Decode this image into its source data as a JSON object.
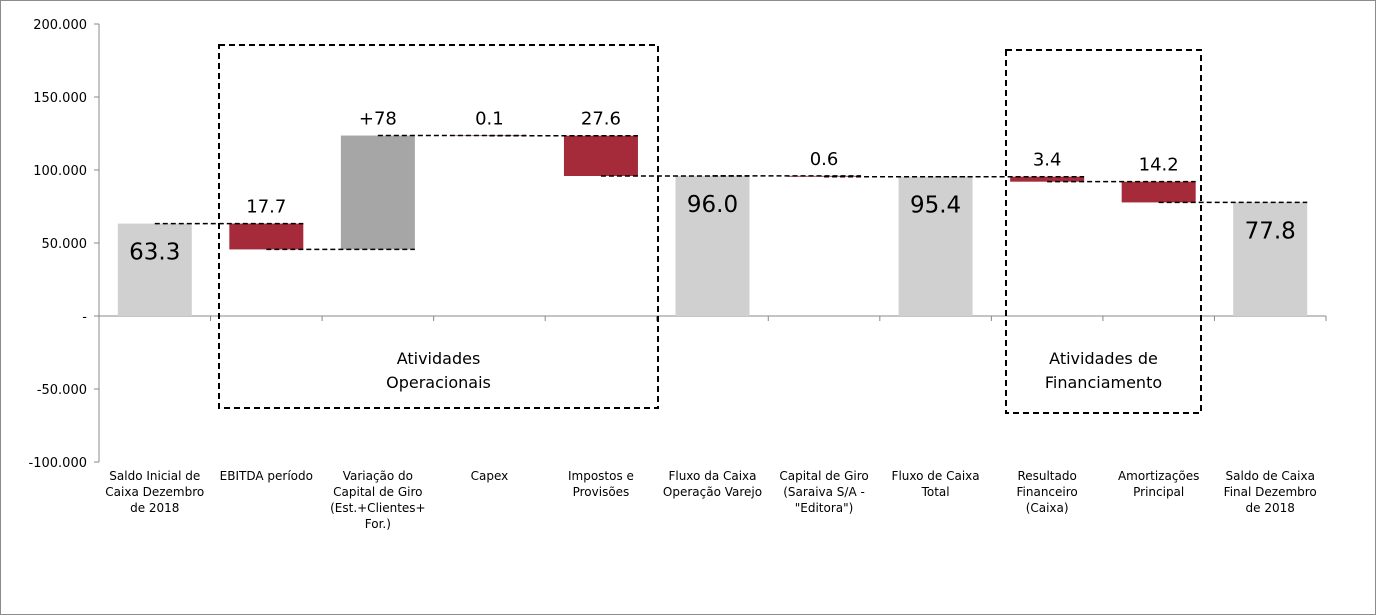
{
  "chart_data": {
    "type": "waterfall",
    "categories": [
      "Saldo Inicial de\nCaixa Dezembro\nde 2018",
      "EBITDA  período",
      "Variação do\nCapital de Giro\n(Est.+Clientes+\nFor.)",
      "Capex",
      "Impostos e\nProvisões",
      "Fluxo da Caixa\nOperação Varejo",
      "Capital de Giro\n(Saraiva S/A -\n\"Editora\")",
      "Fluxo de Caixa\nTotal",
      "Resultado\nFinanceiro\n(Caixa)",
      "Amortizações\nPrincipal",
      "Saldo de Caixa\nFinal Dezembro\nde 2018"
    ],
    "measures": [
      "total",
      "relative",
      "relative",
      "relative",
      "relative",
      "total",
      "relative",
      "total",
      "relative",
      "relative",
      "total"
    ],
    "values": [
      63300,
      -17700,
      78000,
      -100,
      -27600,
      96000,
      -600,
      95400,
      -3400,
      -14200,
      77800
    ],
    "value_labels": [
      "63.3",
      "17.7",
      "+78",
      "0.1",
      "27.6",
      "96.0",
      "0.6",
      "95.4",
      "3.4",
      "14.2",
      "77.8"
    ],
    "colors": {
      "total": "#d0d0d0",
      "increase": "#a6a6a6",
      "decrease": "#a52a3a"
    },
    "ylim": [
      -100000,
      200000
    ],
    "yticks": [
      {
        "value": -100000,
        "label": "-100.000"
      },
      {
        "value": -50000,
        "label": "-50.000"
      },
      {
        "value": 0,
        "label": "-"
      },
      {
        "value": 50000,
        "label": "50.000"
      },
      {
        "value": 100000,
        "label": "100.000"
      },
      {
        "value": 150000,
        "label": "150.000"
      },
      {
        "value": 200000,
        "label": "200.000"
      }
    ],
    "annotations": [
      [
        "Atividades",
        "Operacionais"
      ],
      [
        "Atividades de",
        "Financiamento"
      ]
    ]
  }
}
